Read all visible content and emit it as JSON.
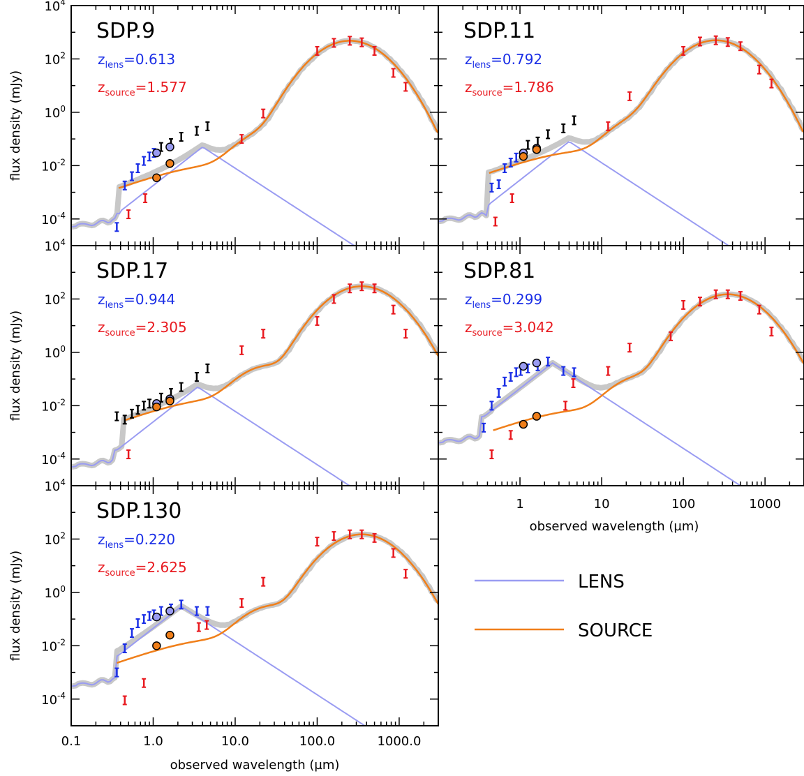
{
  "colors": {
    "lens": "#9a9cf2",
    "source": "#f07f1a",
    "total": "#c8c8c8",
    "lens_points": "#1a2ee6",
    "source_points": "#e8191f",
    "other_points": "#000000",
    "lens_text": "#1a2ee6",
    "source_text": "#e8191f"
  },
  "legend": {
    "lens_label": "LENS",
    "source_label": "SOURCE"
  },
  "chart_data": {
    "type": "line",
    "xscale": "log",
    "yscale": "log",
    "xlim": [
      0.1,
      3000
    ],
    "ylim": [
      1e-05,
      10000
    ],
    "ylabel": "flux density (mJy)",
    "xlabel": "observed wavelength (µm)",
    "x_ticklabels_bottom": [
      "0.1",
      "1.0",
      "10.0",
      "100.0",
      "1000.0"
    ],
    "x_ticklabels_mid": [
      "1",
      "10",
      "100",
      "1000"
    ],
    "y_ticklabels": [
      {
        "base": "10",
        "exp": "4"
      },
      {
        "base": "10",
        "exp": "2"
      },
      {
        "base": "10",
        "exp": "0"
      },
      {
        "base": "10",
        "exp": "-2"
      },
      {
        "base": "10",
        "exp": "-4"
      }
    ],
    "panels": [
      {
        "name": "SDP.9",
        "z_lens_label": "z",
        "z_lens_sub": "lens",
        "z_lens_value": "=0.613",
        "z_source_label": "z",
        "z_source_sub": "source",
        "z_source_value": "=1.577",
        "lens_points": [
          [
            0.36,
            5e-05
          ],
          [
            0.45,
            0.0018
          ],
          [
            0.55,
            0.004
          ],
          [
            0.65,
            0.008
          ],
          [
            0.77,
            0.015
          ],
          [
            0.9,
            0.022
          ],
          [
            1.02,
            0.03
          ]
        ],
        "photometry_points": [
          [
            1.25,
            0.05
          ],
          [
            1.65,
            0.07
          ],
          [
            2.2,
            0.12
          ],
          [
            3.4,
            0.2
          ],
          [
            4.6,
            0.3
          ]
        ],
        "source_points": [
          [
            0.5,
            0.00015
          ],
          [
            0.8,
            0.0006
          ],
          [
            12,
            0.1
          ],
          [
            22,
            0.9
          ],
          [
            100,
            200
          ],
          [
            160,
            400
          ],
          [
            250,
            480
          ],
          [
            350,
            420
          ],
          [
            500,
            200
          ],
          [
            850,
            30
          ],
          [
            1200,
            9
          ]
        ],
        "lens_model_circles": [
          [
            1.1,
            0.03
          ],
          [
            1.6,
            0.05
          ]
        ],
        "source_model_circles": [
          [
            1.1,
            0.0035
          ],
          [
            1.6,
            0.012
          ]
        ]
      },
      {
        "name": "SDP.11",
        "z_lens_label": "z",
        "z_lens_sub": "lens",
        "z_lens_value": "=0.792",
        "z_source_label": "z",
        "z_source_sub": "source",
        "z_source_value": "=1.786",
        "lens_points": [
          [
            0.45,
            0.0015
          ],
          [
            0.55,
            0.002
          ],
          [
            0.65,
            0.008
          ],
          [
            0.77,
            0.013
          ],
          [
            0.9,
            0.02
          ]
        ],
        "photometry_points": [
          [
            1.25,
            0.06
          ],
          [
            1.65,
            0.08
          ],
          [
            2.2,
            0.15
          ],
          [
            3.4,
            0.25
          ],
          [
            4.6,
            0.5
          ]
        ],
        "source_points": [
          [
            0.5,
            8e-05
          ],
          [
            0.8,
            0.0006
          ],
          [
            12,
            0.3
          ],
          [
            22,
            4
          ],
          [
            100,
            200
          ],
          [
            160,
            450
          ],
          [
            250,
            500
          ],
          [
            350,
            430
          ],
          [
            500,
            300
          ],
          [
            850,
            40
          ],
          [
            1200,
            12
          ]
        ],
        "lens_model_circles": [
          [
            1.1,
            0.03
          ],
          [
            1.6,
            0.045
          ]
        ],
        "source_model_circles": [
          [
            1.1,
            0.022
          ],
          [
            1.6,
            0.04
          ]
        ]
      },
      {
        "name": "SDP.17",
        "z_lens_label": "z",
        "z_lens_sub": "lens",
        "z_lens_value": "=0.944",
        "z_source_label": "z",
        "z_source_sub": "source",
        "z_source_value": "=2.305",
        "lens_points": [],
        "photometry_points": [
          [
            0.36,
            0.004
          ],
          [
            0.45,
            0.003
          ],
          [
            0.55,
            0.005
          ],
          [
            0.65,
            0.007
          ],
          [
            0.77,
            0.01
          ],
          [
            0.9,
            0.012
          ],
          [
            1.25,
            0.02
          ],
          [
            1.65,
            0.03
          ],
          [
            2.2,
            0.05
          ],
          [
            3.4,
            0.12
          ],
          [
            4.6,
            0.25
          ]
        ],
        "source_points": [
          [
            0.5,
            0.00015
          ],
          [
            12,
            1.2
          ],
          [
            22,
            5
          ],
          [
            100,
            15
          ],
          [
            160,
            100
          ],
          [
            250,
            250
          ],
          [
            350,
            300
          ],
          [
            500,
            250
          ],
          [
            850,
            40
          ],
          [
            1200,
            5
          ]
        ],
        "lens_model_circles": [
          [
            1.1,
            0.012
          ],
          [
            1.6,
            0.018
          ]
        ],
        "source_model_circles": [
          [
            1.1,
            0.009
          ],
          [
            1.6,
            0.015
          ]
        ]
      },
      {
        "name": "SDP.81",
        "z_lens_label": "z",
        "z_lens_sub": "lens",
        "z_lens_value": "=0.299",
        "z_source_label": "z",
        "z_source_sub": "source",
        "z_source_value": "=3.042",
        "lens_points": [
          [
            0.36,
            0.0015
          ],
          [
            0.45,
            0.01
          ],
          [
            0.55,
            0.03
          ],
          [
            0.65,
            0.08
          ],
          [
            0.77,
            0.12
          ],
          [
            0.9,
            0.18
          ],
          [
            1.02,
            0.2
          ],
          [
            1.25,
            0.25
          ],
          [
            1.65,
            0.3
          ],
          [
            2.2,
            0.45
          ],
          [
            3.4,
            0.2
          ],
          [
            4.6,
            0.18
          ]
        ],
        "photometry_points": [],
        "source_points": [
          [
            0.45,
            0.00015
          ],
          [
            0.77,
            0.0008
          ],
          [
            3.6,
            0.01
          ],
          [
            4.5,
            0.07
          ],
          [
            12,
            0.2
          ],
          [
            22,
            1.5
          ],
          [
            70,
            4
          ],
          [
            100,
            60
          ],
          [
            160,
            80
          ],
          [
            250,
            150
          ],
          [
            350,
            150
          ],
          [
            500,
            130
          ],
          [
            850,
            40
          ],
          [
            1200,
            6
          ]
        ],
        "lens_model_circles": [
          [
            1.1,
            0.3
          ],
          [
            1.6,
            0.4
          ]
        ],
        "source_model_circles": [
          [
            1.1,
            0.002
          ],
          [
            1.6,
            0.004
          ]
        ]
      },
      {
        "name": "SDP.130",
        "z_lens_label": "z",
        "z_lens_sub": "lens",
        "z_lens_value": "=0.220",
        "z_source_label": "z",
        "z_source_sub": "source",
        "z_source_value": "=2.625",
        "lens_points": [
          [
            0.36,
            0.001
          ],
          [
            0.45,
            0.008
          ],
          [
            0.55,
            0.03
          ],
          [
            0.65,
            0.07
          ],
          [
            0.77,
            0.1
          ],
          [
            0.9,
            0.13
          ],
          [
            1.02,
            0.15
          ],
          [
            1.25,
            0.2
          ],
          [
            1.65,
            0.25
          ],
          [
            2.2,
            0.35
          ],
          [
            3.4,
            0.2
          ],
          [
            4.6,
            0.2
          ]
        ],
        "photometry_points": [],
        "source_points": [
          [
            0.45,
            9e-05
          ],
          [
            0.77,
            0.0004
          ],
          [
            3.6,
            0.05
          ],
          [
            4.5,
            0.06
          ],
          [
            12,
            0.4
          ],
          [
            22,
            2.5
          ],
          [
            100,
            80
          ],
          [
            160,
            130
          ],
          [
            250,
            150
          ],
          [
            350,
            150
          ],
          [
            500,
            110
          ],
          [
            850,
            30
          ],
          [
            1200,
            5
          ]
        ],
        "lens_model_circles": [
          [
            1.1,
            0.12
          ],
          [
            1.6,
            0.2
          ]
        ],
        "source_model_circles": [
          [
            1.1,
            0.01
          ],
          [
            1.6,
            0.025
          ]
        ]
      }
    ]
  }
}
